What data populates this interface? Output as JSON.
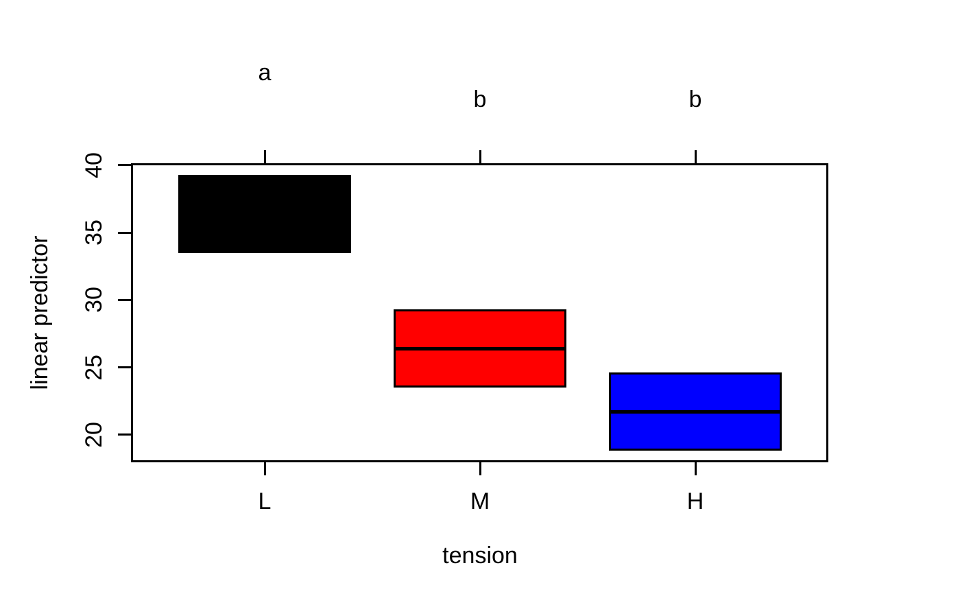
{
  "figure": {
    "background": "#FFFFFF",
    "frame_color": "#000000",
    "text_color": "#000000"
  },
  "chart_data": {
    "type": "boxplot",
    "title": "",
    "xlabel": "tension",
    "ylabel": "linear predictor",
    "categories": [
      "L",
      "M",
      "H"
    ],
    "series": [
      {
        "name": "L",
        "lower": 33.5,
        "mid": 36.4,
        "upper": 39.3,
        "color": "#000000",
        "cld_letter": "a"
      },
      {
        "name": "M",
        "lower": 23.5,
        "mid": 26.4,
        "upper": 29.3,
        "color": "#FF0000",
        "cld_letter": "b"
      },
      {
        "name": "H",
        "lower": 18.8,
        "mid": 21.7,
        "upper": 24.6,
        "color": "#0000FF",
        "cld_letter": "b"
      }
    ],
    "y_ticks": [
      20,
      25,
      30,
      35,
      40
    ],
    "ylim": [
      18.0,
      40.1
    ],
    "grid": false,
    "legend": false,
    "top_axis_ticks": true
  }
}
